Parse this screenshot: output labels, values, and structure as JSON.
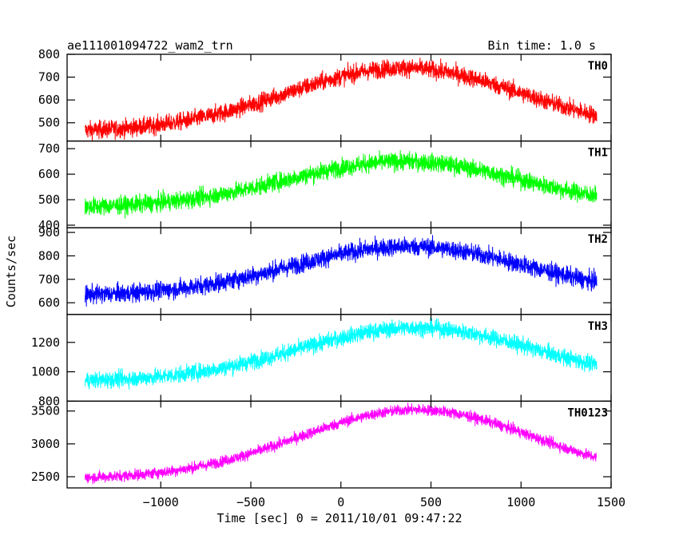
{
  "header": {
    "title": "ae111001094722_wam2_trn",
    "bin_time": "Bin time: 1.0 s"
  },
  "chart_data": {
    "type": "line",
    "title": "ae111001094722_wam2_trn",
    "xlabel": "Time [sec] 0 = 2011/10/01 09:47:22",
    "ylabel": "Counts/sec",
    "xlim": [
      -1520,
      1500
    ],
    "x_ticks": [
      -1000,
      -500,
      0,
      500,
      1000,
      1500
    ],
    "x_tick_labels": [
      "−1000",
      "−500",
      "0",
      "500",
      "1000",
      "1500"
    ],
    "x_start": -1420,
    "x_end": 1420,
    "bin_time": 1.0,
    "panels": [
      {
        "name": "TH0",
        "color": "#ff0000",
        "ylim": [
          420,
          800
        ],
        "y_ticks": [
          500,
          600,
          700,
          800
        ],
        "y_tick_labels": [
          "500",
          "600",
          "700",
          "800"
        ],
        "baseline": 460,
        "peak": 740,
        "peak_time": 350,
        "width": 650,
        "noise": 28
      },
      {
        "name": "TH1",
        "color": "#00ff00",
        "ylim": [
          390,
          730
        ],
        "y_ticks": [
          400,
          500,
          600,
          700
        ],
        "y_tick_labels": [
          "400",
          "500",
          "600",
          "700"
        ],
        "baseline": 468,
        "peak": 650,
        "peak_time": 350,
        "width": 650,
        "noise": 25
      },
      {
        "name": "TH2",
        "color": "#0000ff",
        "ylim": [
          550,
          920
        ],
        "y_ticks": [
          600,
          700,
          800,
          900
        ],
        "y_tick_labels": [
          "600",
          "700",
          "800",
          "900"
        ],
        "baseline": 630,
        "peak": 840,
        "peak_time": 380,
        "width": 650,
        "noise": 28
      },
      {
        "name": "TH3",
        "color": "#00ffff",
        "ylim": [
          800,
          1390
        ],
        "y_ticks": [
          800,
          1000,
          1200
        ],
        "y_tick_labels": [
          "800",
          "1000",
          "1200"
        ],
        "baseline": 935,
        "peak": 1300,
        "peak_time": 420,
        "width": 650,
        "noise": 40
      },
      {
        "name": "TH0123",
        "color": "#ff00ff",
        "ylim": [
          2330,
          3650
        ],
        "y_ticks": [
          2500,
          3000,
          3500
        ],
        "y_tick_labels": [
          "2500",
          "3000",
          "3500"
        ],
        "baseline": 2470,
        "peak": 3520,
        "peak_time": 420,
        "width": 650,
        "noise": 60
      }
    ]
  }
}
